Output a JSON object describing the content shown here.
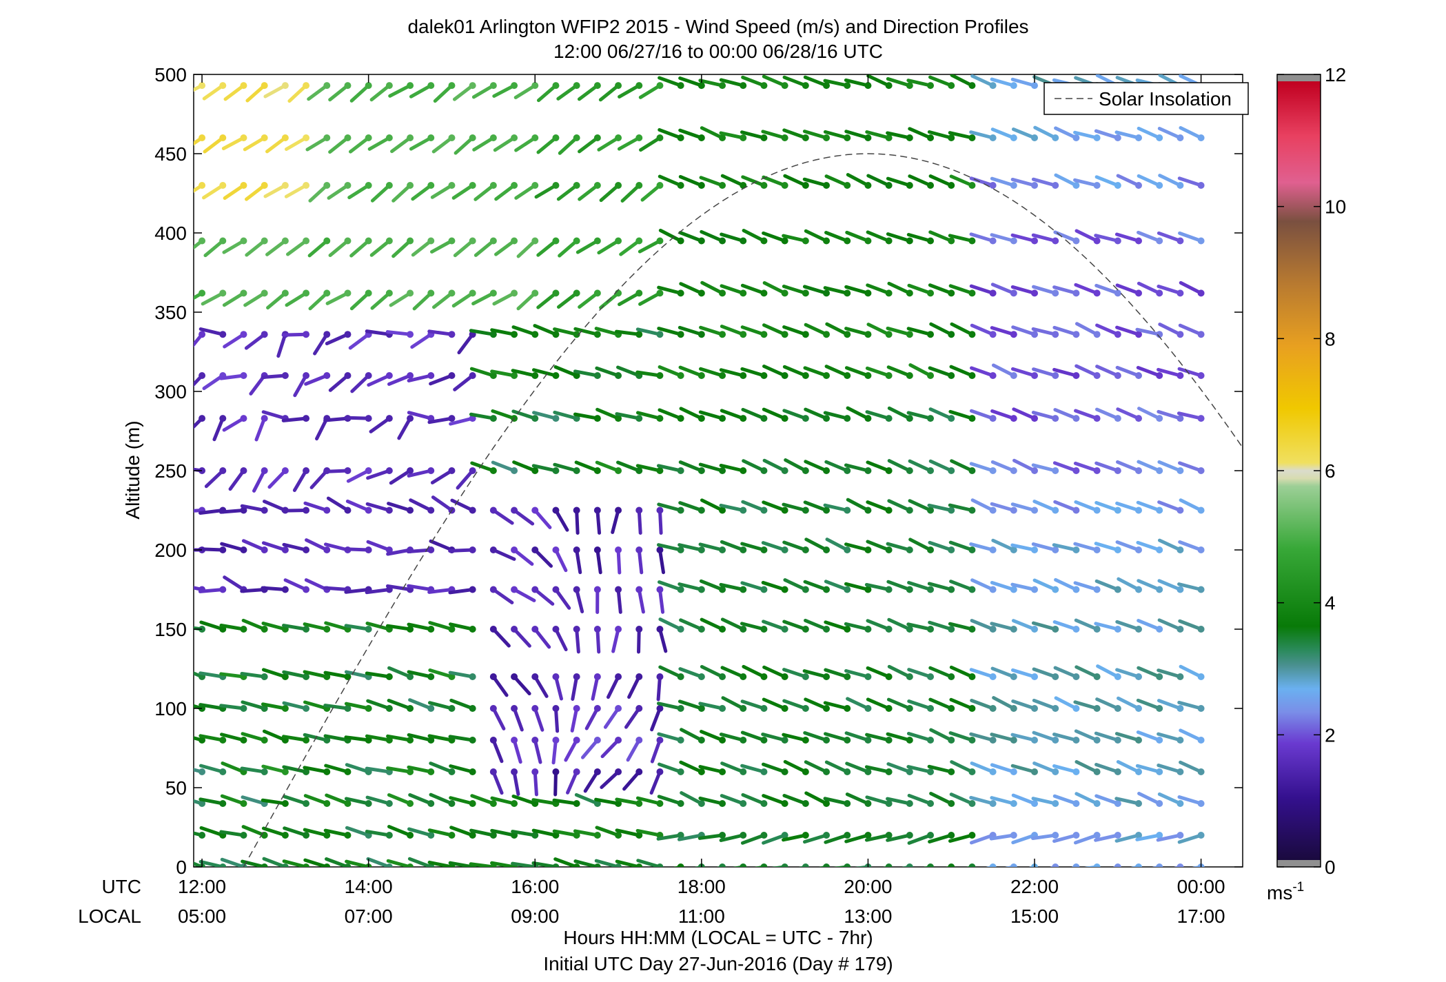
{
  "chart_data": {
    "type": "wind-barb-profile",
    "title": "dalek01 Arlington WFIP2 2015 - Wind Speed (m/s) and Direction Profiles",
    "subtitle": "12:00 06/27/16 to 00:00 06/28/16  UTC",
    "ylabel": "Altitude (m)",
    "xlabel": "Hours HH:MM  (LOCAL = UTC - 7hr)",
    "xlabel2": "Initial UTC Day 27-Jun-2016 (Day # 179)",
    "row_label_utc": "UTC",
    "row_label_local": "LOCAL",
    "ylim": [
      0,
      500
    ],
    "yticks": [
      0,
      50,
      100,
      150,
      200,
      250,
      300,
      350,
      400,
      450,
      500
    ],
    "xlim": [
      11.9,
      24.5
    ],
    "xticks": [
      12,
      14,
      16,
      18,
      20,
      22,
      24
    ],
    "xticklabels_utc": [
      "12:00",
      "14:00",
      "16:00",
      "18:00",
      "20:00",
      "22:00",
      "00:00"
    ],
    "xticklabels_local": [
      "05:00",
      "07:00",
      "09:00",
      "11:00",
      "13:00",
      "15:00",
      "17:00"
    ],
    "legend": {
      "label": "Solar Insolation",
      "placement": "top-right"
    },
    "colorbar": {
      "unit_base": "ms",
      "unit_exp": "-1",
      "range": [
        0,
        12
      ],
      "ticks": [
        "0",
        "2",
        "4",
        "6",
        "8",
        "10",
        "12"
      ]
    },
    "altitudes": [
      0,
      20,
      40,
      60,
      80,
      100,
      120,
      150,
      175,
      200,
      225,
      250,
      283,
      310,
      336,
      362,
      395,
      430,
      460,
      493
    ],
    "times_hours": [
      12.0,
      12.25,
      12.5,
      12.75,
      13.0,
      13.25,
      13.5,
      13.75,
      14.0,
      14.25,
      14.5,
      14.75,
      15.0,
      15.25,
      15.5,
      15.75,
      16.0,
      16.25,
      16.5,
      16.75,
      17.0,
      17.25,
      17.5,
      17.75,
      18.0,
      18.25,
      18.5,
      18.75,
      19.0,
      19.25,
      19.5,
      19.75,
      20.0,
      20.25,
      20.5,
      20.75,
      21.0,
      21.25,
      21.5,
      21.75,
      22.0,
      22.25,
      22.5,
      22.75,
      23.0,
      23.25,
      23.5,
      23.75,
      24.0
    ],
    "wind_field_summary": "Light (0.5-2 m/s) variable winds below 250 m in the morning 13:00-17:30 UTC with a calm southerly core 15:30-17:30 UTC at 60-220 m; steady westerly-northwesterly 3-4 m/s after 17:45 UTC; 4-6.5 m/s southwesterly aloft early.",
    "solar_insolation_curve": {
      "rise_hour": 12.5,
      "peak_hour": 20.0,
      "peak_altitude": 450,
      "set_hour": 27.5
    }
  }
}
